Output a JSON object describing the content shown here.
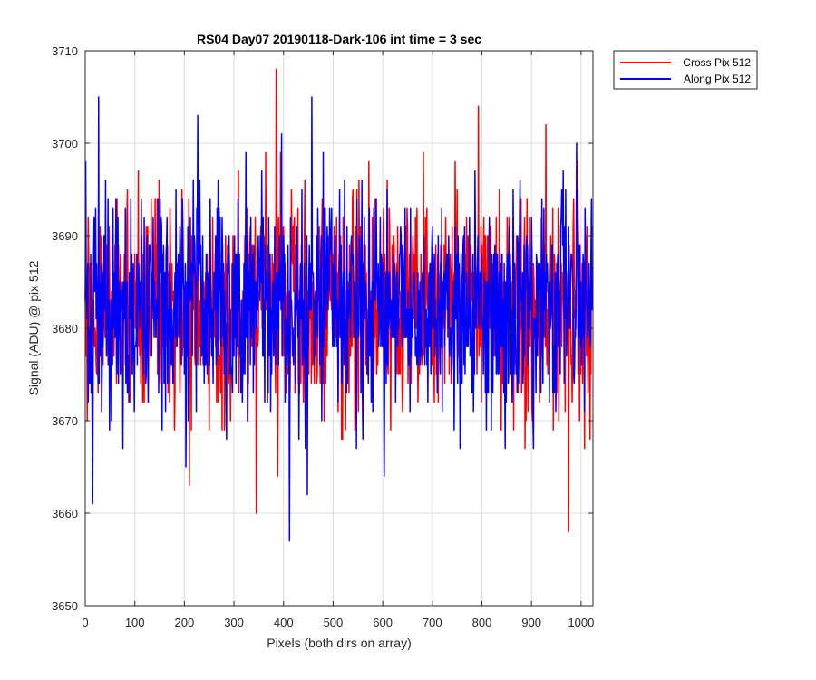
{
  "chart_data": {
    "type": "line",
    "title": "RS04 Day07 20190118-Dark-106 int time = 3 sec",
    "xlabel": "Pixels (both dirs on array)",
    "ylabel": "Signal (ADU) @ pix 512",
    "xlim": [
      0,
      1024
    ],
    "ylim": [
      3650,
      3710
    ],
    "xticks": [
      0,
      100,
      200,
      300,
      400,
      500,
      600,
      700,
      800,
      900,
      1000
    ],
    "yticks": [
      3650,
      3660,
      3670,
      3680,
      3690,
      3700,
      3710
    ],
    "grid": true,
    "legend_position": "outside-top-right",
    "series": [
      {
        "name": "Cross Pix 512",
        "color": "#ff0000",
        "n_points": 1024,
        "mean": 3682.5,
        "std": 6,
        "min": 3658,
        "max": 3708,
        "notable_points": [
          [
            385,
            3708
          ],
          [
            345,
            3660
          ],
          [
            975,
            3658
          ],
          [
            210,
            3663
          ]
        ]
      },
      {
        "name": "Along Pix 512",
        "color": "#0000ff",
        "n_points": 1024,
        "mean": 3682.5,
        "std": 6,
        "min": 3657,
        "max": 3705,
        "notable_points": [
          [
            412,
            3657
          ],
          [
            27,
            3705
          ],
          [
            457,
            3705
          ],
          [
            15,
            3661
          ]
        ]
      }
    ]
  }
}
